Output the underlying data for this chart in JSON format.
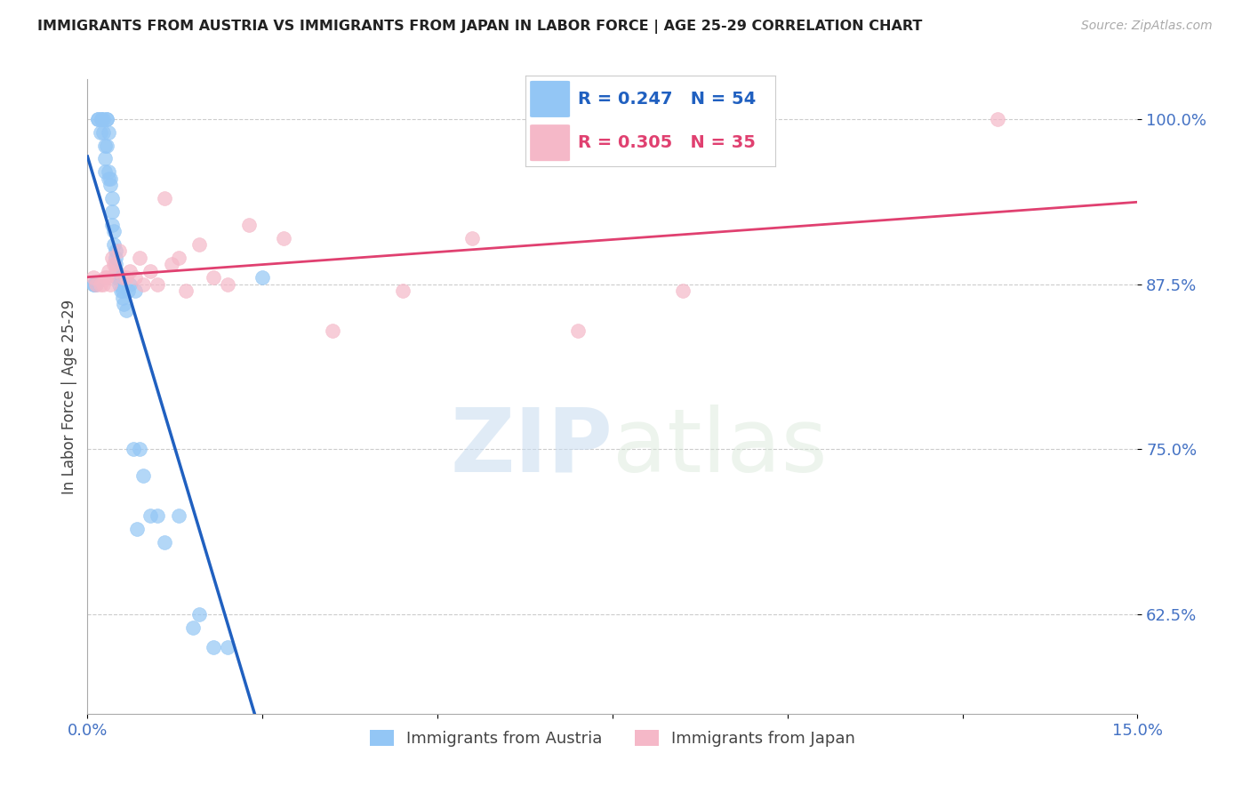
{
  "title": "IMMIGRANTS FROM AUSTRIA VS IMMIGRANTS FROM JAPAN IN LABOR FORCE | AGE 25-29 CORRELATION CHART",
  "source": "Source: ZipAtlas.com",
  "ylabel": "In Labor Force | Age 25-29",
  "xlim": [
    0.0,
    0.15
  ],
  "ylim": [
    0.55,
    1.03
  ],
  "yticks": [
    0.625,
    0.75,
    0.875,
    1.0
  ],
  "ytick_labels": [
    "62.5%",
    "75.0%",
    "87.5%",
    "100.0%"
  ],
  "xticks": [
    0.0,
    0.025,
    0.05,
    0.075,
    0.1,
    0.125,
    0.15
  ],
  "xtick_labels": [
    "0.0%",
    "",
    "",
    "",
    "",
    "",
    "15.0%"
  ],
  "austria_color": "#93c6f5",
  "japan_color": "#f5b8c8",
  "austria_line_color": "#2060c0",
  "japan_line_color": "#e04070",
  "legend_austria_R": 0.247,
  "legend_austria_N": 54,
  "legend_japan_R": 0.305,
  "legend_japan_N": 35,
  "austria_x": [
    0.0008,
    0.001,
    0.0012,
    0.0015,
    0.0015,
    0.0018,
    0.002,
    0.002,
    0.0022,
    0.0022,
    0.0025,
    0.0025,
    0.0025,
    0.0028,
    0.0028,
    0.0028,
    0.003,
    0.003,
    0.003,
    0.0032,
    0.0032,
    0.0035,
    0.0035,
    0.0035,
    0.0038,
    0.0038,
    0.004,
    0.004,
    0.004,
    0.0042,
    0.0042,
    0.0045,
    0.0045,
    0.0048,
    0.005,
    0.005,
    0.0052,
    0.0055,
    0.0058,
    0.006,
    0.0065,
    0.0068,
    0.007,
    0.0075,
    0.008,
    0.009,
    0.01,
    0.011,
    0.013,
    0.015,
    0.016,
    0.018,
    0.02,
    0.025
  ],
  "austria_y": [
    0.875,
    0.875,
    0.875,
    1.0,
    1.0,
    0.99,
    1.0,
    1.0,
    1.0,
    0.99,
    0.98,
    0.97,
    0.96,
    1.0,
    1.0,
    0.98,
    0.99,
    0.96,
    0.955,
    0.955,
    0.95,
    0.94,
    0.93,
    0.92,
    0.915,
    0.905,
    0.9,
    0.895,
    0.89,
    0.885,
    0.88,
    0.88,
    0.875,
    0.87,
    0.87,
    0.865,
    0.86,
    0.855,
    0.87,
    0.875,
    0.75,
    0.87,
    0.69,
    0.75,
    0.73,
    0.7,
    0.7,
    0.68,
    0.7,
    0.615,
    0.625,
    0.6,
    0.6,
    0.88
  ],
  "japan_x": [
    0.0008,
    0.0012,
    0.0018,
    0.0022,
    0.0025,
    0.0028,
    0.003,
    0.0032,
    0.0035,
    0.0038,
    0.004,
    0.0045,
    0.005,
    0.0055,
    0.006,
    0.0068,
    0.0075,
    0.008,
    0.009,
    0.01,
    0.011,
    0.012,
    0.013,
    0.014,
    0.016,
    0.018,
    0.02,
    0.023,
    0.028,
    0.035,
    0.045,
    0.055,
    0.07,
    0.085,
    0.13
  ],
  "japan_y": [
    0.88,
    0.875,
    0.875,
    0.875,
    0.88,
    0.88,
    0.885,
    0.875,
    0.895,
    0.89,
    0.885,
    0.9,
    0.88,
    0.88,
    0.885,
    0.88,
    0.895,
    0.875,
    0.885,
    0.875,
    0.94,
    0.89,
    0.895,
    0.87,
    0.905,
    0.88,
    0.875,
    0.92,
    0.91,
    0.84,
    0.87,
    0.91,
    0.84,
    0.87,
    1.0
  ],
  "background_color": "#ffffff",
  "watermark_zip": "ZIP",
  "watermark_atlas": "atlas"
}
